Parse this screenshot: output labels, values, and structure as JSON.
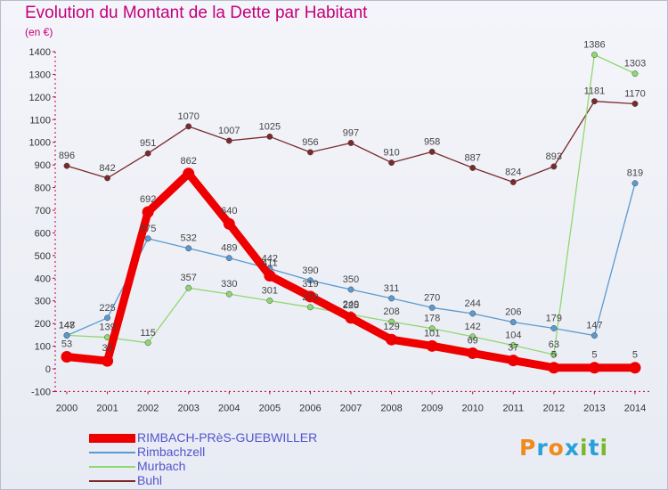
{
  "header": {
    "title": "Evolution du Montant de la Dette par Habitant",
    "subtitle": "(en €)"
  },
  "logo": {
    "letters": [
      "P",
      "r",
      "o",
      "x",
      "i",
      "t",
      "i"
    ],
    "colors": [
      "#f08a1c",
      "#2aa0d8",
      "#f08a1c",
      "#2aa0d8",
      "#7ab82a",
      "#2aa0d8",
      "#7ab82a"
    ]
  },
  "chart_data": {
    "type": "line",
    "title": "Evolution du Montant de la Dette par Habitant",
    "ylabel": "(en €)",
    "x": [
      "2000",
      "2001",
      "2002",
      "2003",
      "2004",
      "2005",
      "2006",
      "2007",
      "2008",
      "2009",
      "2010",
      "2011",
      "2012",
      "2013",
      "2014"
    ],
    "ylim": [
      -100,
      1400
    ],
    "yticks": [
      -100,
      0,
      100,
      200,
      300,
      400,
      500,
      600,
      700,
      800,
      900,
      1000,
      1100,
      1200,
      1300,
      1400
    ],
    "grid": false,
    "legend_position": "bottom-left",
    "series": [
      {
        "name": "Buhl",
        "color": "#7a2a2a",
        "values": [
          896,
          842,
          951,
          1070,
          1007,
          1025,
          956,
          997,
          910,
          958,
          887,
          824,
          893,
          1181,
          1170
        ],
        "thick": false
      },
      {
        "name": "Murbach",
        "color": "#8fd870",
        "values": [
          148,
          139,
          115,
          357,
          330,
          301,
          272,
          240,
          208,
          178,
          142,
          104,
          63,
          1386,
          1303
        ],
        "thick": false
      },
      {
        "name": "Rimbachzell",
        "color": "#5a9ad0",
        "values": [
          147,
          225,
          575,
          532,
          489,
          442,
          390,
          350,
          311,
          270,
          244,
          206,
          179,
          147,
          819
        ],
        "thick": false
      },
      {
        "name": "RIMBACH-PRèS-GUEBWILLER",
        "color": "#ee0000",
        "values": [
          53,
          35,
          692,
          862,
          640,
          411,
          319,
          225,
          129,
          101,
          69,
          37,
          5,
          5,
          5
        ],
        "thick": true
      }
    ]
  }
}
